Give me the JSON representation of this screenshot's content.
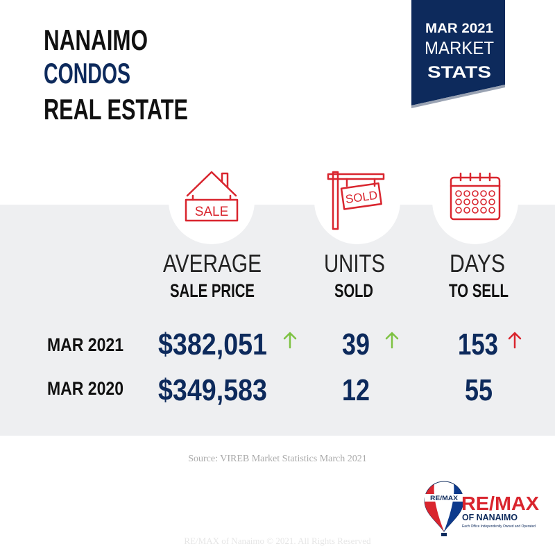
{
  "header": {
    "title": [
      "NANAIMO",
      "CONDOS",
      "REAL ESTATE"
    ]
  },
  "badge": {
    "date": "MAR 2021",
    "line2": "MARKET",
    "line3": "STATS"
  },
  "icons": {
    "sale_sign": "SALE",
    "sold_sign": "SOLD"
  },
  "table": {
    "columns": [
      [
        "AVERAGE",
        "SALE PRICE"
      ],
      [
        "UNITS",
        "SOLD"
      ],
      [
        "DAYS",
        "TO SELL"
      ]
    ],
    "rows": [
      {
        "label": "MAR 2021",
        "cells": [
          "$382,051",
          "39",
          "153"
        ]
      },
      {
        "label": "MAR 2020",
        "cells": [
          "$349,583",
          "12",
          "55"
        ]
      }
    ]
  },
  "source": "Source: VIREB Market Statistics March 2021",
  "logo": {
    "balloon": "RE/MAX",
    "brand": "RE/MAX",
    "office": "OF NANAIMO",
    "tagline": "Each Office Independently Owned and Operated"
  },
  "footer": "RE/MAX of Nanaimo © 2021. All Rights Reserved"
}
